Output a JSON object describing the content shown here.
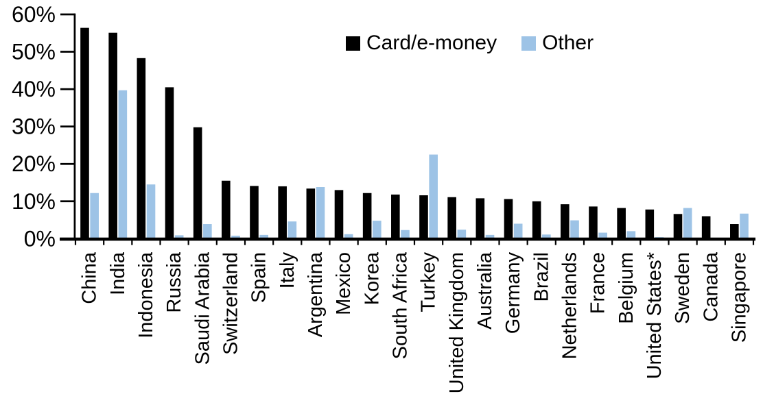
{
  "chart_data": {
    "type": "bar",
    "title": "",
    "xlabel": "",
    "ylabel": "",
    "ylim": [
      0,
      60
    ],
    "y_tick_labels": [
      "0%",
      "10%",
      "20%",
      "30%",
      "40%",
      "50%",
      "60%"
    ],
    "grid": false,
    "legend_position": "top-center",
    "categories": [
      "China",
      "India",
      "Indonesia",
      "Russia",
      "Saudi Arabia",
      "Switzerland",
      "Spain",
      "Italy",
      "Argentina",
      "Mexico",
      "Korea",
      "South Africa",
      "Turkey",
      "United Kingdom",
      "Australia",
      "Germany",
      "Brazil",
      "Netherlands",
      "France",
      "Belgium",
      "United States*",
      "Sweden",
      "Canada",
      "Singapore"
    ],
    "series": [
      {
        "name": "Card/e-money",
        "color": "#000000",
        "values": [
          56.4,
          55.1,
          48.3,
          40.5,
          29.8,
          15.5,
          14.1,
          14.0,
          13.4,
          13.0,
          12.2,
          11.8,
          11.6,
          11.1,
          10.8,
          10.6,
          10.0,
          9.2,
          8.6,
          8.2,
          7.8,
          6.6,
          6.0,
          3.9
        ]
      },
      {
        "name": "Other",
        "color": "#9DC3E6",
        "values": [
          12.2,
          39.7,
          14.5,
          0.9,
          3.9,
          0.8,
          1.0,
          4.6,
          13.8,
          1.2,
          4.8,
          2.3,
          22.5,
          2.4,
          1.0,
          4.0,
          1.1,
          4.9,
          1.6,
          2.0,
          0.4,
          8.2,
          0,
          6.7
        ]
      }
    ]
  }
}
